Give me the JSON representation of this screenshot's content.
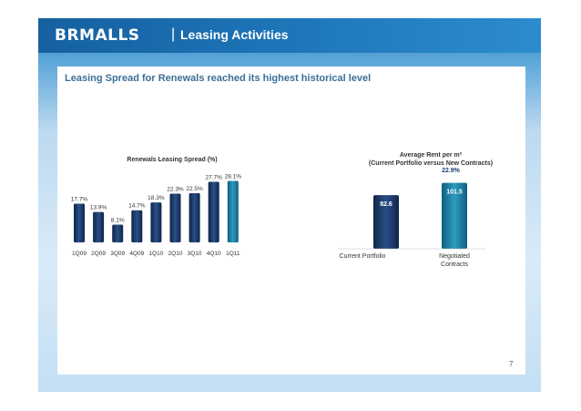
{
  "header": {
    "logo_text": "BRMALLS",
    "separator": "|",
    "section": "Leasing Activities"
  },
  "headline": "Leasing Spread for Renewals reached its highest historical level",
  "page_number": "7",
  "colors": {
    "bar_dark": "#1c3b6e",
    "bar_teal": "#1e7fa0",
    "header_blue": "#1f78bb",
    "headline_blue": "#3b6f97"
  },
  "chart_data": [
    {
      "type": "bar",
      "title": "Renewals Leasing Spread (%)",
      "categories": [
        "1Q09",
        "2Q09",
        "3Q09",
        "4Q09",
        "1Q10",
        "2Q10",
        "3Q10",
        "4Q10",
        "1Q11"
      ],
      "values": [
        17.7,
        13.9,
        8.1,
        14.7,
        18.3,
        22.3,
        22.5,
        27.7,
        28.1
      ],
      "labels": [
        "17.7%",
        "13.9%",
        "8.1%",
        "14.7%",
        "18.3%",
        "22.3%",
        "22.5%",
        "27.7%",
        "28.1%"
      ],
      "ylim": [
        0,
        30
      ],
      "xlabel": "",
      "ylabel": ""
    },
    {
      "type": "bar",
      "title_line1": "Average Rent per m²",
      "title_line2": "(Current Portfolio versus New Contracts)",
      "categories_line1": [
        "Current Portfolio",
        "Negotiated"
      ],
      "categories_line2": [
        "",
        "Contracts"
      ],
      "values": [
        82.6,
        101.5
      ],
      "labels": [
        "82.6",
        "101.5"
      ],
      "growth_label": "22.9%",
      "ylim": [
        0,
        115
      ]
    }
  ]
}
